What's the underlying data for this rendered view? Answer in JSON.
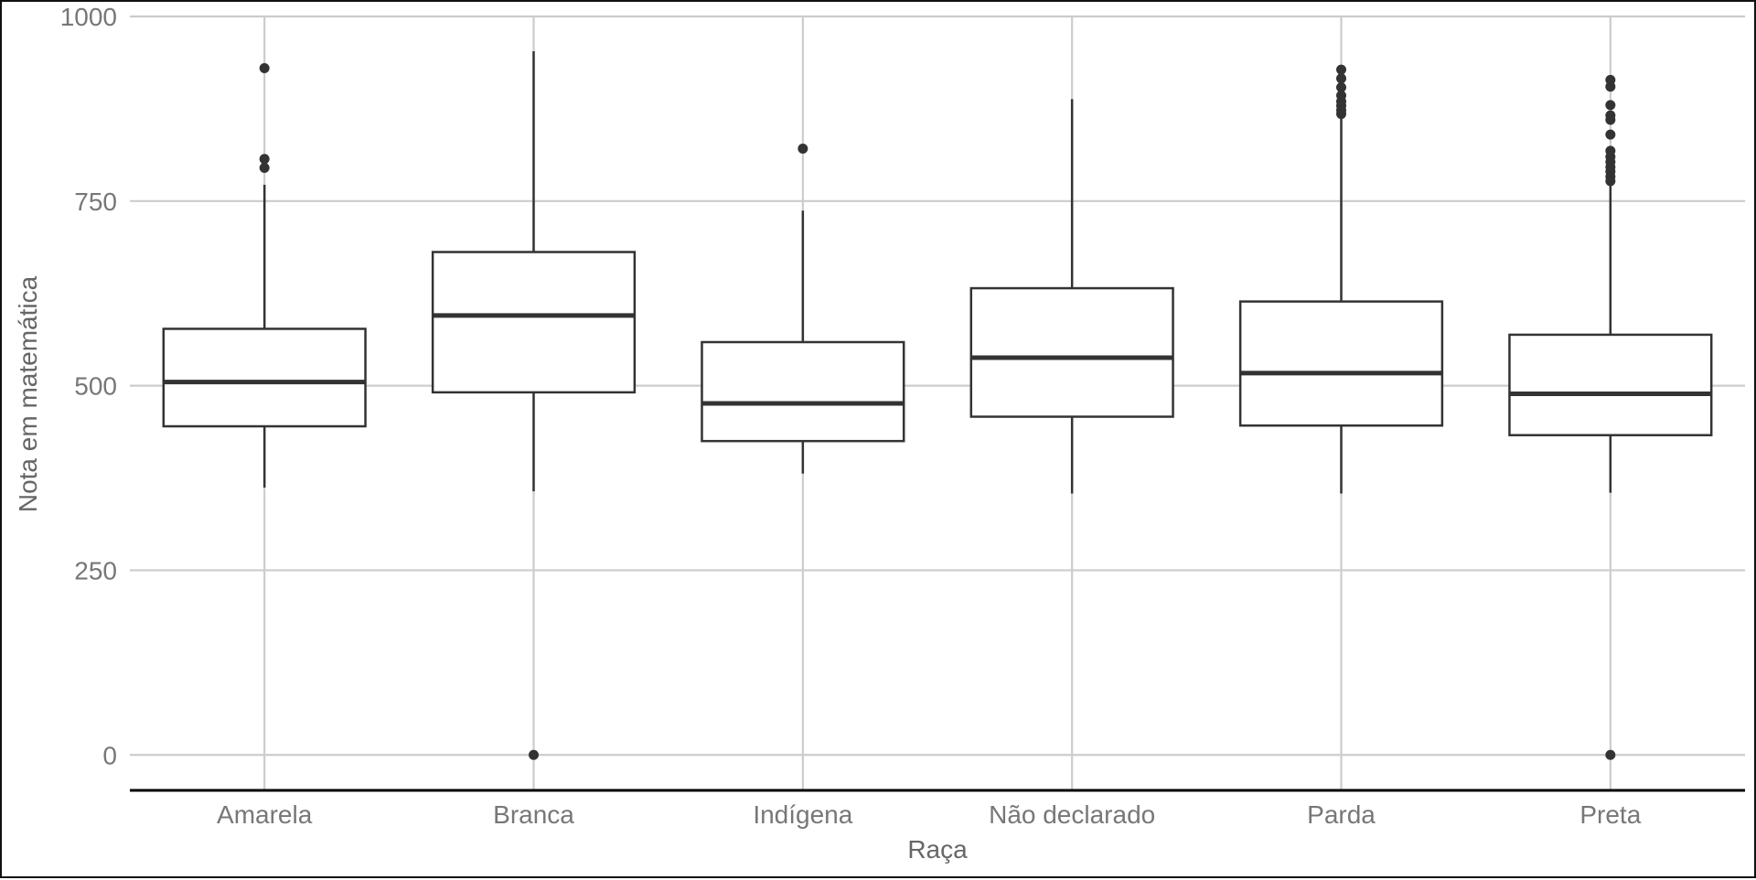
{
  "chart_data": {
    "type": "boxplot",
    "title": "",
    "xlabel": "Raça",
    "ylabel": "Nota em matemática",
    "ylim": [
      -48,
      1000
    ],
    "yticks": [
      0,
      250,
      500,
      750,
      1000
    ],
    "ytick_labels": [
      "0",
      "250",
      "500",
      "750",
      "1000"
    ],
    "grid": true,
    "legend": "none",
    "colors": {
      "box": "#333333",
      "grid": "#cccccc",
      "axis": "#000000",
      "tick_text": "#777777"
    },
    "categories": [
      "Amarela",
      "Branca",
      "Indígena",
      "Não declarado",
      "Parda",
      "Preta"
    ],
    "boxes": [
      {
        "category": "Amarela",
        "whisker_low": 362,
        "q1": 445,
        "median": 505,
        "q3": 577,
        "whisker_high": 772,
        "outliers": [
          930,
          807,
          795
        ]
      },
      {
        "category": "Branca",
        "whisker_low": 357,
        "q1": 491,
        "median": 595,
        "q3": 681,
        "whisker_high": 953,
        "outliers": [
          0
        ]
      },
      {
        "category": "Indígena",
        "whisker_low": 381,
        "q1": 425,
        "median": 476,
        "q3": 559,
        "whisker_high": 737,
        "outliers": [
          821
        ]
      },
      {
        "category": "Não declarado",
        "whisker_low": 354,
        "q1": 458,
        "median": 538,
        "q3": 632,
        "whisker_high": 888,
        "outliers": []
      },
      {
        "category": "Parda",
        "whisker_low": 354,
        "q1": 446,
        "median": 517,
        "q3": 614,
        "whisker_high": 862,
        "outliers": [
          868,
          873,
          879,
          885,
          893,
          904,
          916,
          928
        ]
      },
      {
        "category": "Preta",
        "whisker_low": 355,
        "q1": 433,
        "median": 489,
        "q3": 569,
        "whisker_high": 771,
        "outliers": [
          0,
          777,
          783,
          790,
          796,
          803,
          810,
          818,
          840,
          860,
          866,
          880,
          905,
          914
        ]
      }
    ]
  }
}
